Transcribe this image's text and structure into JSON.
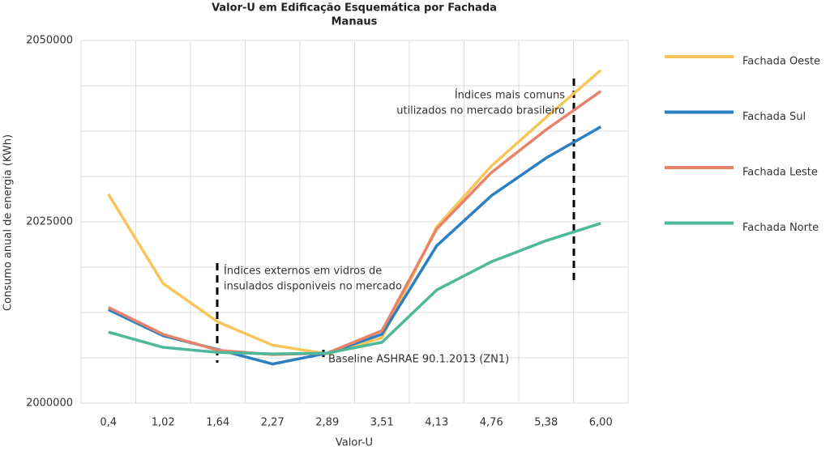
{
  "chart_data": {
    "type": "line",
    "title": "Valor-U  em Edificação Esquemática por Fachada",
    "subtitle": "Manaus",
    "x_label": "Valor-U",
    "y_label": "Consumo anual de energia (KWh)",
    "categories": [
      "0,4",
      "1,02",
      "1,64",
      "2,27",
      "2,89",
      "3,51",
      "4,13",
      "4,76",
      "5,38",
      "6,00"
    ],
    "series": [
      {
        "name": "Fachada Oeste",
        "color": "#f7c55a",
        "values": [
          2028800,
          2016500,
          2011200,
          2008000,
          2006800,
          2009000,
          2024300,
          2032700,
          2039400,
          2045900
        ]
      },
      {
        "name": "Fachada Sul",
        "color": "#2d7fc1",
        "values": [
          2012900,
          2009300,
          2007400,
          2005400,
          2006900,
          2009500,
          2021700,
          2028600,
          2033800,
          2038100
        ]
      },
      {
        "name": "Fachada Leste",
        "color": "#e8836b",
        "values": [
          2013200,
          2009500,
          2007300,
          2006700,
          2006900,
          2010000,
          2024000,
          2031800,
          2037700,
          2043000
        ]
      },
      {
        "name": "Fachada Norte",
        "color": "#4db89a",
        "values": [
          2009800,
          2007700,
          2007000,
          2006800,
          2006900,
          2008400,
          2015600,
          2019500,
          2022400,
          2024800
        ]
      }
    ],
    "ylim": [
      2000000,
      2050000
    ],
    "yticks": [
      2000000,
      2025000,
      2050000
    ],
    "grid_yticks": [
      2000000,
      2006250,
      2012500,
      2018750,
      2025000,
      2031250,
      2037500,
      2043750,
      2050000
    ],
    "grid": true,
    "legend": "right",
    "annotations": [
      {
        "lines": [
          "Índices externos em vidros de",
          "insulados disponiveis no mercado"
        ]
      },
      {
        "lines": [
          "Baseline ASHRAE 90.1.2013 (ZN1)"
        ]
      },
      {
        "lines": [
          "Índices mais comuns",
          "utilizados no mercado brasileiro"
        ]
      }
    ]
  }
}
